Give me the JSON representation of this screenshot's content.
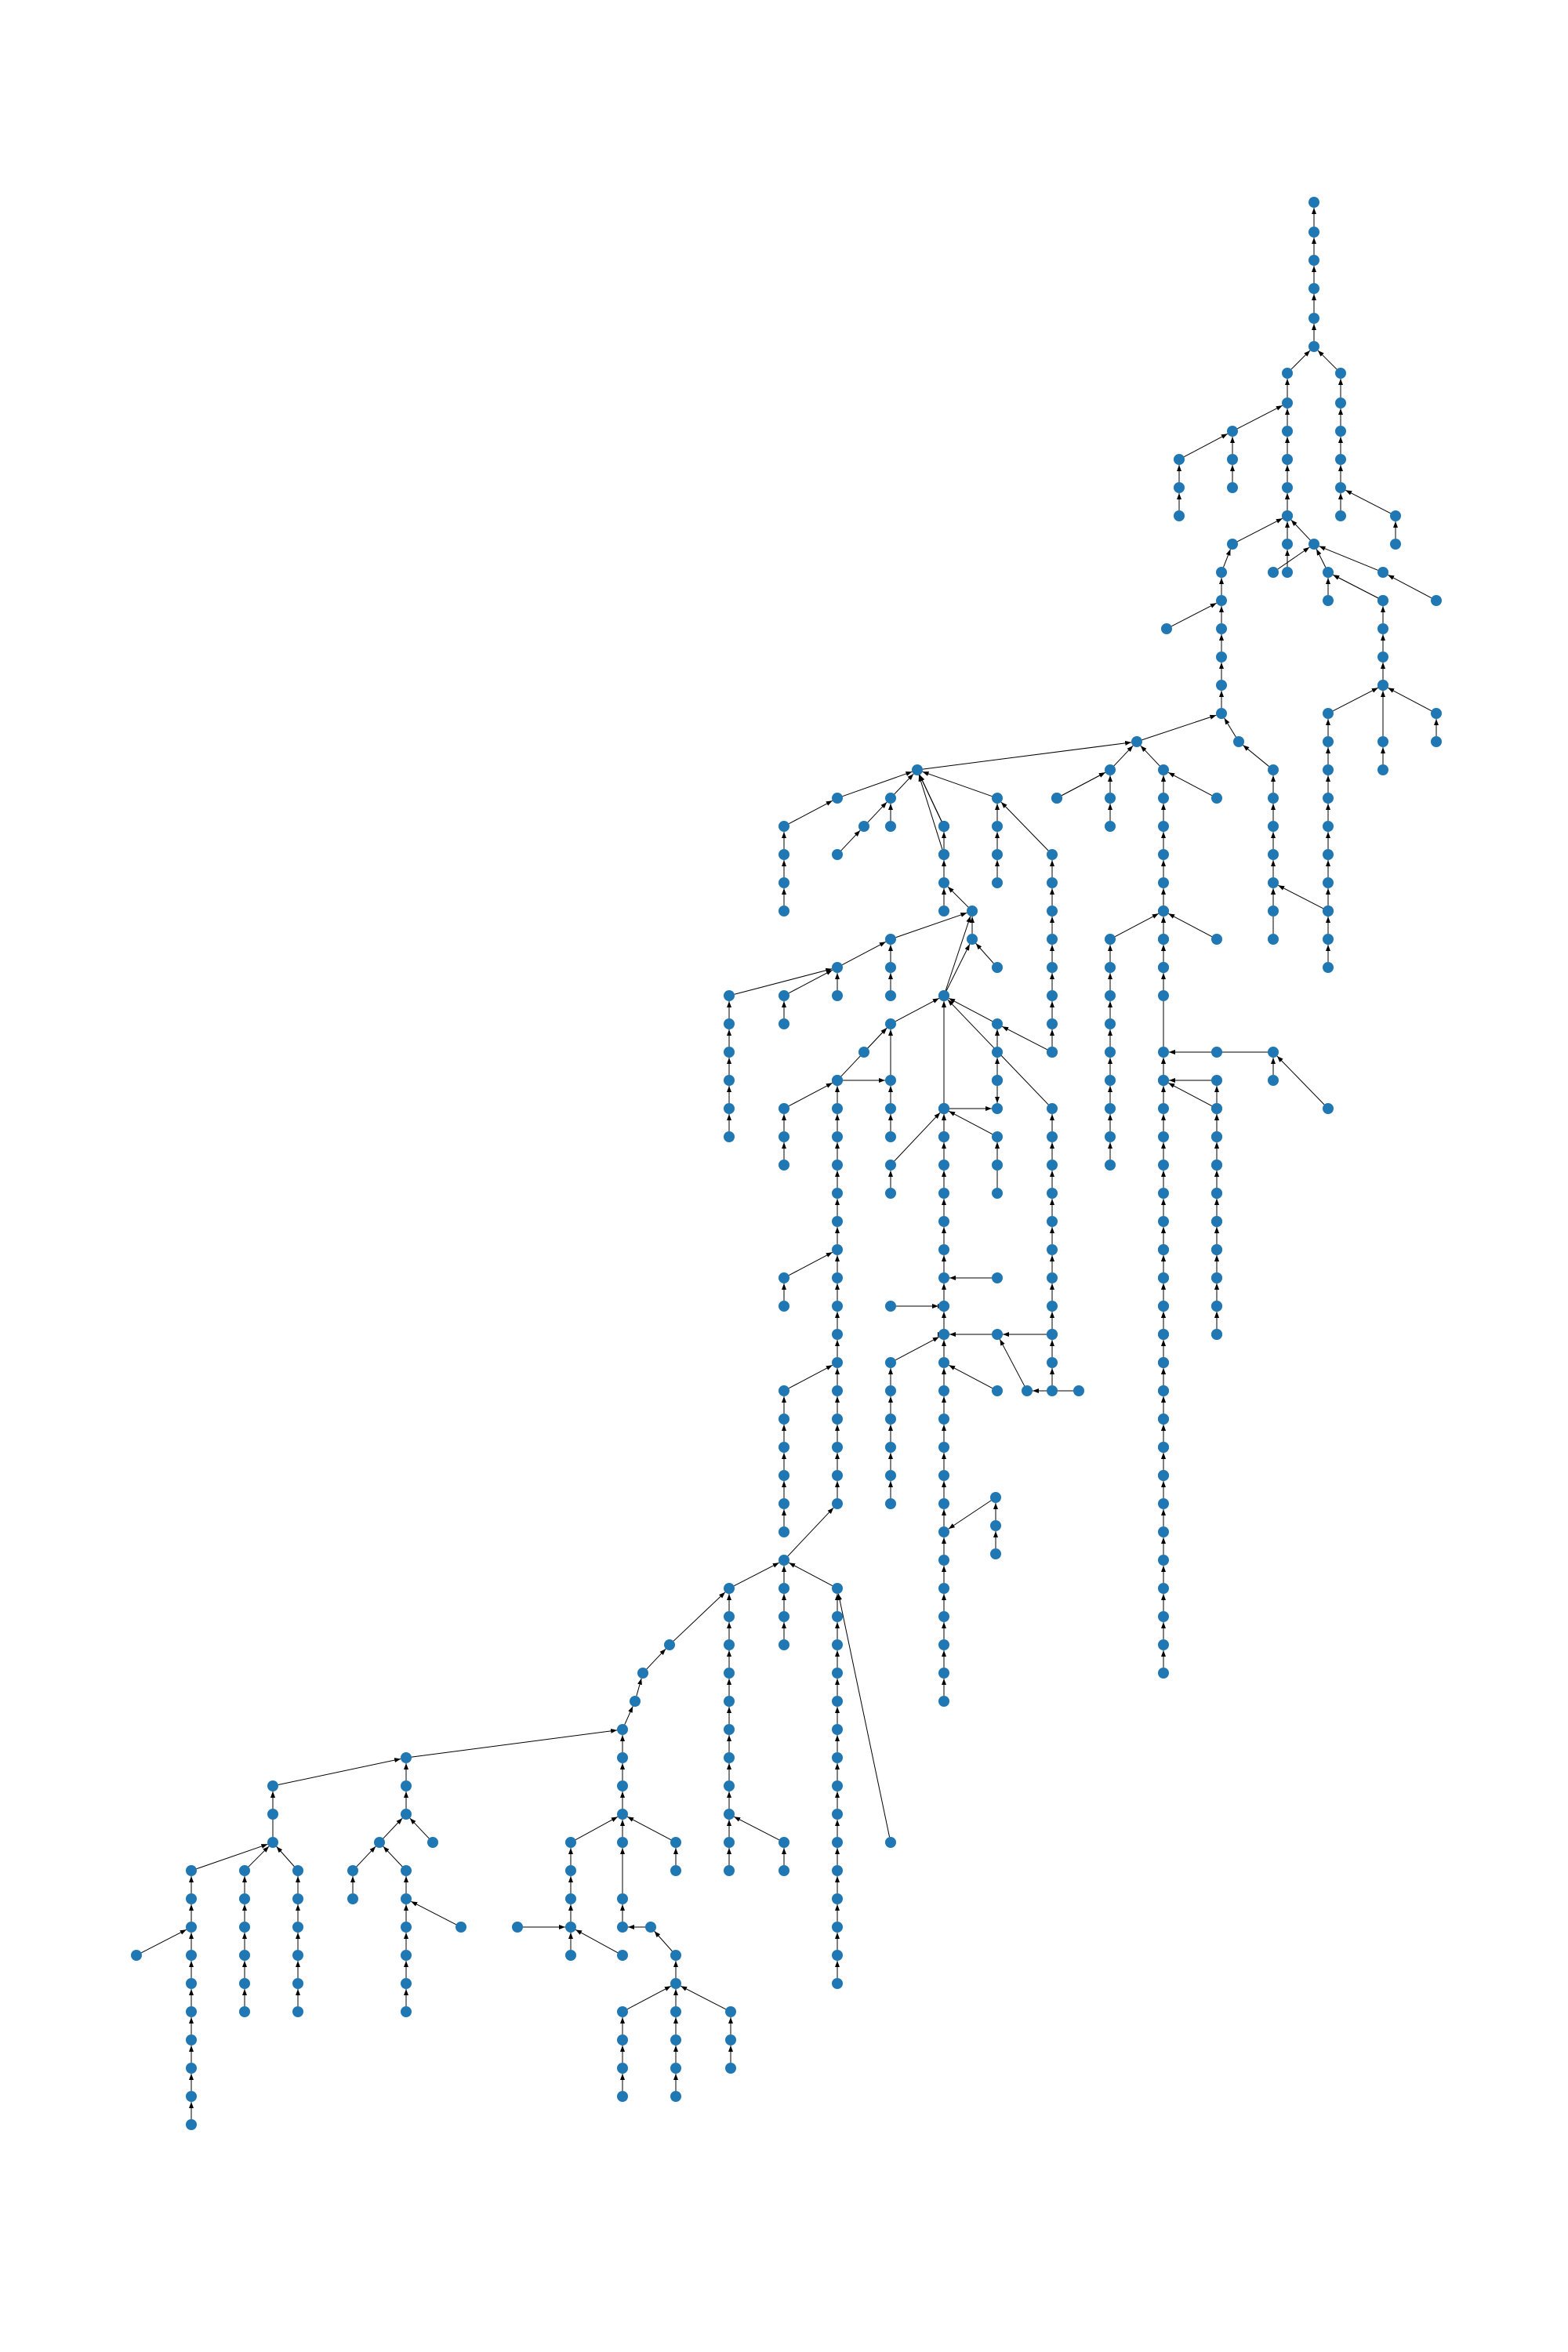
{
  "graph": {
    "node_color": "#1f77b4",
    "edge_color": "#000000",
    "edge_style": "directed-arrow",
    "layout": "hierarchical-tree"
  }
}
